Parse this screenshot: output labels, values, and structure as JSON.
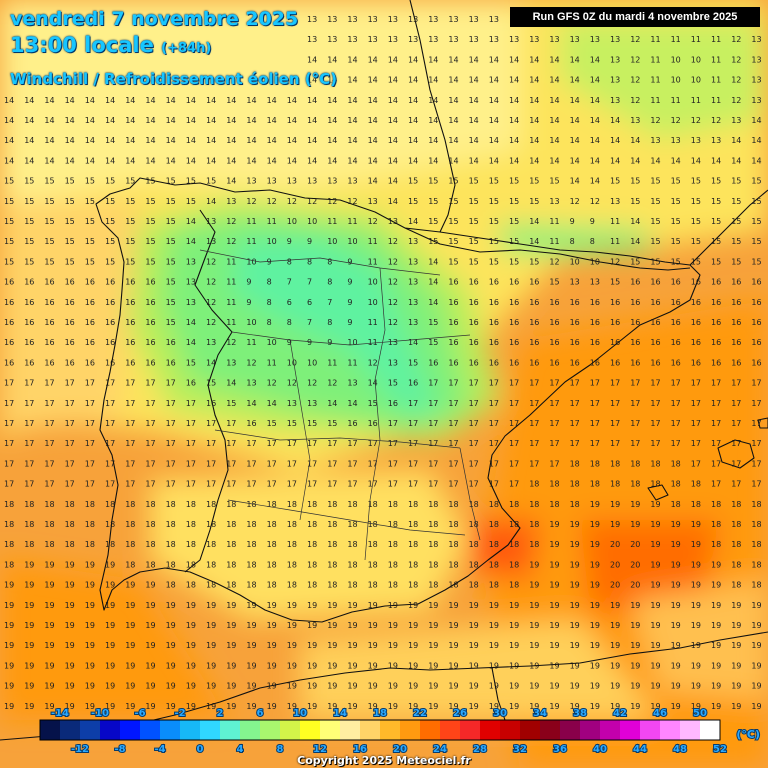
{
  "header": {
    "date": "vendredi 7 novembre 2025",
    "time": "13:00 locale",
    "offset": "(+84h)",
    "parameter": "Windchill / Refroidissement éolien (°C)",
    "run": "Run GFS 0Z du mardi 4 novembre 2025"
  },
  "footer": {
    "copyright": "Copyright 2025 Meteociel.fr"
  },
  "legend": {
    "unit": "(°C)",
    "top_labels": [
      "-14",
      "-10",
      "-6",
      "-2",
      "2",
      "6",
      "10",
      "14",
      "18",
      "22",
      "26",
      "30",
      "34",
      "38",
      "42",
      "46",
      "50"
    ],
    "bottom_labels": [
      "-12",
      "-8",
      "-4",
      "0",
      "4",
      "8",
      "12",
      "16",
      "20",
      "24",
      "28",
      "32",
      "36",
      "40",
      "44",
      "48",
      "52"
    ],
    "colors": [
      "#05124a",
      "#0a2a7a",
      "#0d3ea8",
      "#0707c8",
      "#0016ff",
      "#0052ff",
      "#0a8dfb",
      "#17b8f6",
      "#30d7ff",
      "#5ff2d2",
      "#84f58f",
      "#a9f76e",
      "#d3f449",
      "#ffff22",
      "#ffff77",
      "#ffeea2",
      "#ffd468",
      "#ffb92a",
      "#ff9a10",
      "#ff6d00",
      "#ff4418",
      "#f52828",
      "#e00000",
      "#c80000",
      "#a10000",
      "#8a001a",
      "#89004a",
      "#a10080",
      "#c300ac",
      "#e100d8",
      "#f247f2",
      "#ff86ff",
      "#ffb8ff",
      "#ffffff"
    ]
  },
  "map_regions": [
    "Spain",
    "Portugal",
    "Balearic Islands",
    "Morocco",
    "Algeria",
    "France"
  ]
}
